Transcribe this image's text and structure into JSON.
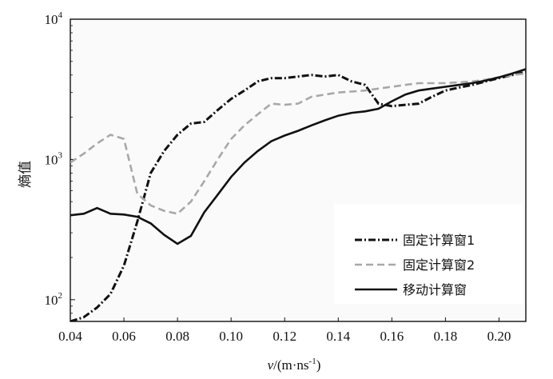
{
  "chart_data": {
    "type": "line",
    "xlabel_main": "v",
    "xlabel_unit": "/(m·ns",
    "xlabel_exp": "-1",
    "xlabel_close": ")",
    "ylabel": "熵值",
    "y_scale": "log",
    "xlim": [
      0.04,
      0.21
    ],
    "ylim": [
      70,
      10000
    ],
    "x_ticks": [
      "0.04",
      "0.06",
      "0.08",
      "0.10",
      "0.12",
      "0.14",
      "0.16",
      "0.18",
      "0.20"
    ],
    "y_ticks": [
      {
        "base": "10",
        "exp": "2"
      },
      {
        "base": "10",
        "exp": "3"
      },
      {
        "base": "10",
        "exp": "4"
      }
    ],
    "grid": false,
    "legend_position": "bottom-right",
    "series": [
      {
        "name": "固定计算窗1",
        "color": "#111111",
        "dash": "dashdot",
        "points": [
          [
            0.04,
            70
          ],
          [
            0.045,
            75
          ],
          [
            0.05,
            88
          ],
          [
            0.055,
            110
          ],
          [
            0.06,
            175
          ],
          [
            0.065,
            360
          ],
          [
            0.07,
            800
          ],
          [
            0.075,
            1150
          ],
          [
            0.08,
            1500
          ],
          [
            0.085,
            1800
          ],
          [
            0.09,
            1850
          ],
          [
            0.095,
            2250
          ],
          [
            0.1,
            2700
          ],
          [
            0.105,
            3100
          ],
          [
            0.11,
            3600
          ],
          [
            0.115,
            3800
          ],
          [
            0.12,
            3800
          ],
          [
            0.125,
            3900
          ],
          [
            0.13,
            4000
          ],
          [
            0.135,
            3900
          ],
          [
            0.14,
            4000
          ],
          [
            0.145,
            3600
          ],
          [
            0.15,
            3400
          ],
          [
            0.155,
            2500
          ],
          [
            0.16,
            2400
          ],
          [
            0.165,
            2450
          ],
          [
            0.17,
            2500
          ],
          [
            0.175,
            2800
          ],
          [
            0.18,
            3100
          ],
          [
            0.185,
            3250
          ],
          [
            0.19,
            3400
          ],
          [
            0.195,
            3600
          ],
          [
            0.2,
            3800
          ],
          [
            0.205,
            4000
          ],
          [
            0.21,
            4200
          ]
        ]
      },
      {
        "name": "固定计算窗2",
        "color": "#a8a8a8",
        "dash": "dashed",
        "points": [
          [
            0.04,
            950
          ],
          [
            0.045,
            1100
          ],
          [
            0.05,
            1300
          ],
          [
            0.055,
            1500
          ],
          [
            0.06,
            1400
          ],
          [
            0.065,
            570
          ],
          [
            0.07,
            470
          ],
          [
            0.075,
            430
          ],
          [
            0.08,
            410
          ],
          [
            0.085,
            500
          ],
          [
            0.09,
            700
          ],
          [
            0.095,
            1000
          ],
          [
            0.1,
            1400
          ],
          [
            0.105,
            1750
          ],
          [
            0.11,
            2100
          ],
          [
            0.115,
            2500
          ],
          [
            0.12,
            2450
          ],
          [
            0.125,
            2500
          ],
          [
            0.13,
            2800
          ],
          [
            0.135,
            2900
          ],
          [
            0.14,
            3000
          ],
          [
            0.145,
            3050
          ],
          [
            0.15,
            3100
          ],
          [
            0.155,
            3200
          ],
          [
            0.16,
            3300
          ],
          [
            0.165,
            3400
          ],
          [
            0.17,
            3500
          ],
          [
            0.175,
            3500
          ],
          [
            0.18,
            3500
          ],
          [
            0.185,
            3550
          ],
          [
            0.19,
            3600
          ],
          [
            0.195,
            3700
          ],
          [
            0.2,
            3850
          ],
          [
            0.205,
            4000
          ],
          [
            0.21,
            4100
          ]
        ]
      },
      {
        "name": "移动计算窗",
        "color": "#111111",
        "dash": "solid",
        "points": [
          [
            0.04,
            400
          ],
          [
            0.045,
            410
          ],
          [
            0.05,
            450
          ],
          [
            0.055,
            410
          ],
          [
            0.06,
            405
          ],
          [
            0.065,
            390
          ],
          [
            0.07,
            350
          ],
          [
            0.075,
            290
          ],
          [
            0.08,
            250
          ],
          [
            0.085,
            285
          ],
          [
            0.09,
            420
          ],
          [
            0.095,
            560
          ],
          [
            0.1,
            750
          ],
          [
            0.105,
            950
          ],
          [
            0.11,
            1150
          ],
          [
            0.115,
            1350
          ],
          [
            0.12,
            1480
          ],
          [
            0.125,
            1600
          ],
          [
            0.13,
            1750
          ],
          [
            0.135,
            1900
          ],
          [
            0.14,
            2050
          ],
          [
            0.145,
            2150
          ],
          [
            0.15,
            2200
          ],
          [
            0.155,
            2300
          ],
          [
            0.16,
            2600
          ],
          [
            0.165,
            2900
          ],
          [
            0.17,
            3100
          ],
          [
            0.175,
            3200
          ],
          [
            0.18,
            3300
          ],
          [
            0.185,
            3400
          ],
          [
            0.19,
            3500
          ],
          [
            0.195,
            3650
          ],
          [
            0.2,
            3850
          ],
          [
            0.205,
            4100
          ],
          [
            0.21,
            4400
          ]
        ]
      }
    ]
  }
}
